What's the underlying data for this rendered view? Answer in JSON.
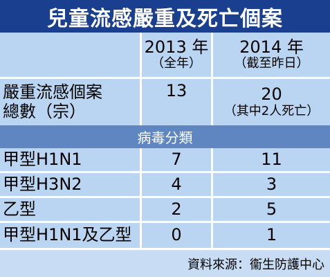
{
  "title": "兒童流感嚴重及死亡個案",
  "columns": [
    {
      "year": "2013 年",
      "note": "（全年）"
    },
    {
      "year": "2014 年",
      "note": "（截至昨日）"
    }
  ],
  "total_row": {
    "label_line1": "嚴重流感個案",
    "label_line2": "總數（宗）",
    "value_2013": "13",
    "value_2014": "20",
    "value_2014_note": "（其中2人死亡）"
  },
  "section_header": "病毒分類",
  "rows": [
    {
      "label": "甲型H1N1",
      "v2013": "7",
      "v2014": "11"
    },
    {
      "label": "甲型H3N2",
      "v2013": "4",
      "v2014": "3"
    },
    {
      "label": "乙型",
      "v2013": "2",
      "v2014": "5"
    },
    {
      "label": "甲型H1N1及乙型",
      "v2013": "0",
      "v2014": "1"
    }
  ],
  "source": "資料來源：衞生防護中心",
  "colors": {
    "title_bg": "#1b3f8f",
    "section_bg": "#5f86c1",
    "cell_bg": "#b9d5f2"
  }
}
